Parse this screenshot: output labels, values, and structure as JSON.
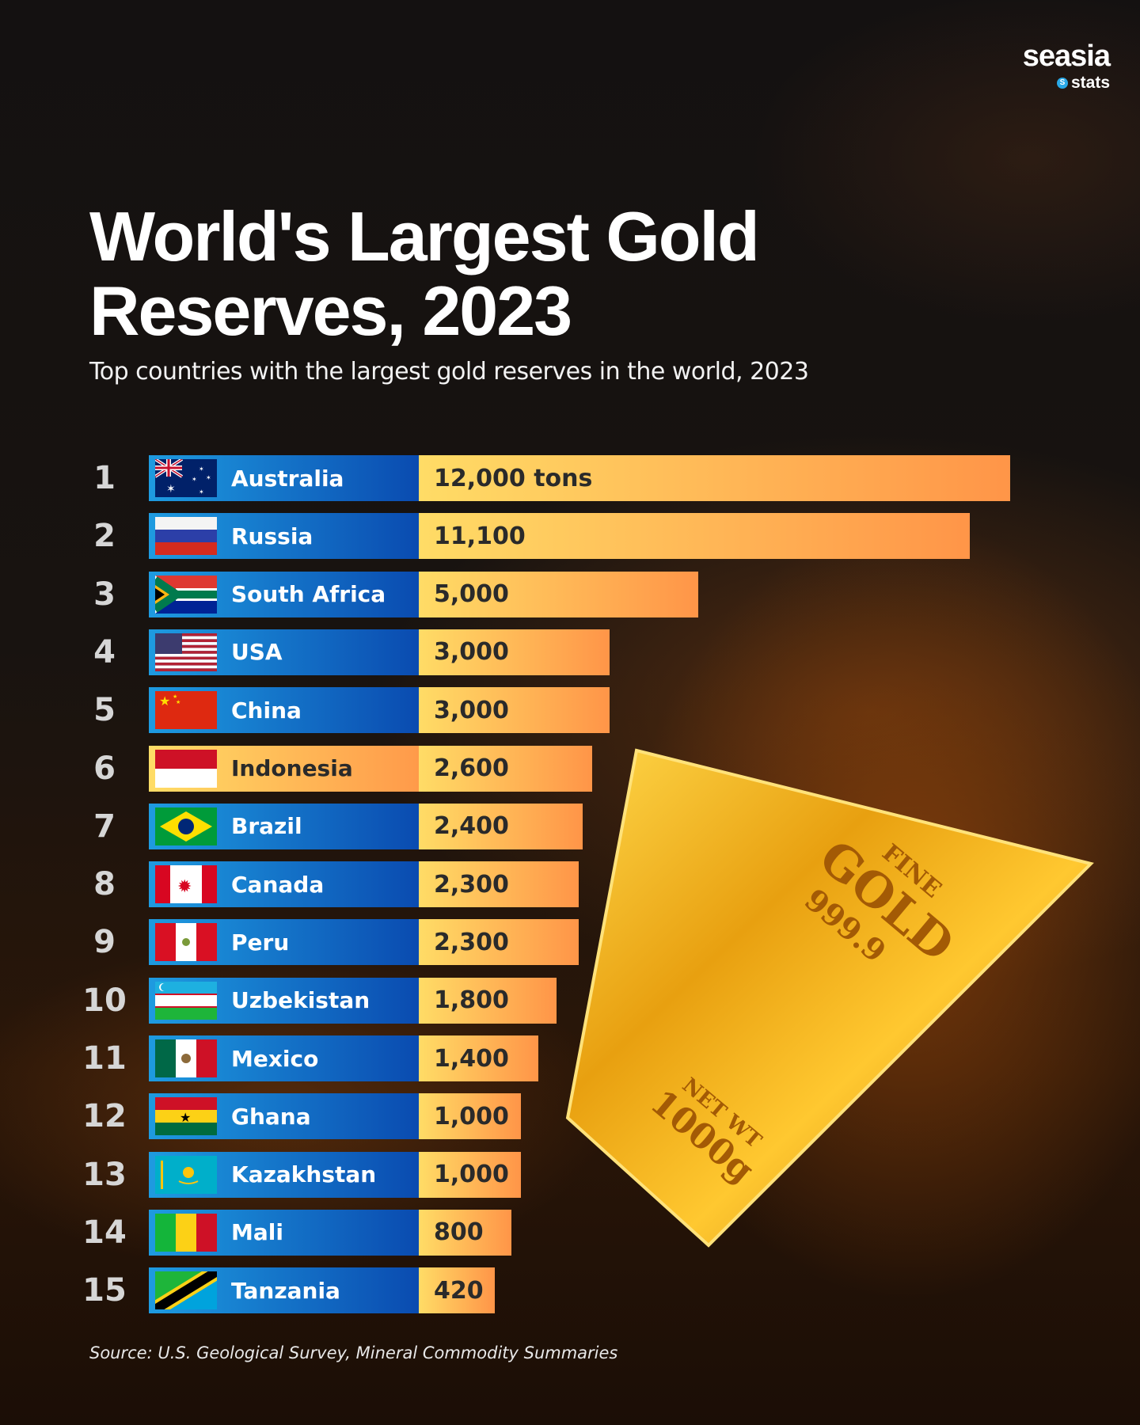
{
  "logo": {
    "brand": "seasia",
    "sub": "stats"
  },
  "title_line1": "World's Largest Gold",
  "title_line2": "Reserves, 2023",
  "subtitle": "Top countries with the largest gold reserves in the world, 2023",
  "source": "Source: U.S. Geological Survey, Mineral Commodity Summaries",
  "gold_bar_markings": {
    "line1": "FINE",
    "line2": "GOLD",
    "line3": "999.9",
    "line4": "NET WT",
    "line5": "1000g"
  },
  "colors": {
    "name_bar": "#1e9be0",
    "name_bar_end": "#0a4bb0",
    "value_bar": "#ffdc66",
    "value_bar_end": "#ff9548"
  },
  "chart_data": {
    "type": "bar",
    "orientation": "horizontal",
    "title": "World's Largest Gold Reserves, 2023",
    "subtitle": "Top countries with the largest gold reserves in the world, 2023",
    "unit": "tons",
    "categories": [
      "Australia",
      "Russia",
      "South Africa",
      "USA",
      "China",
      "Indonesia",
      "Brazil",
      "Canada",
      "Peru",
      "Uzbekistan",
      "Mexico",
      "Ghana",
      "Kazakhstan",
      "Mali",
      "Tanzania"
    ],
    "ranks": [
      "1",
      "2",
      "3",
      "4",
      "5",
      "6",
      "7",
      "8",
      "9",
      "10",
      "11",
      "12",
      "13",
      "14",
      "15"
    ],
    "values": [
      12000,
      11100,
      5000,
      3000,
      3000,
      2600,
      2400,
      2300,
      2300,
      1800,
      1400,
      1000,
      1000,
      800,
      420
    ],
    "labels": [
      "12,000 tons",
      "11,100",
      "5,000",
      "3,000",
      "3,000",
      "2,600",
      "2,400",
      "2,300",
      "2,300",
      "1,800",
      "1,400",
      "1,000",
      "1,000",
      "800",
      "420"
    ],
    "flags": [
      "australia",
      "russia",
      "south-africa",
      "usa",
      "china",
      "indonesia",
      "brazil",
      "canada",
      "peru",
      "uzbekistan",
      "mexico",
      "ghana",
      "kazakhstan",
      "mali",
      "tanzania"
    ],
    "highlighted": [
      "Indonesia"
    ]
  }
}
